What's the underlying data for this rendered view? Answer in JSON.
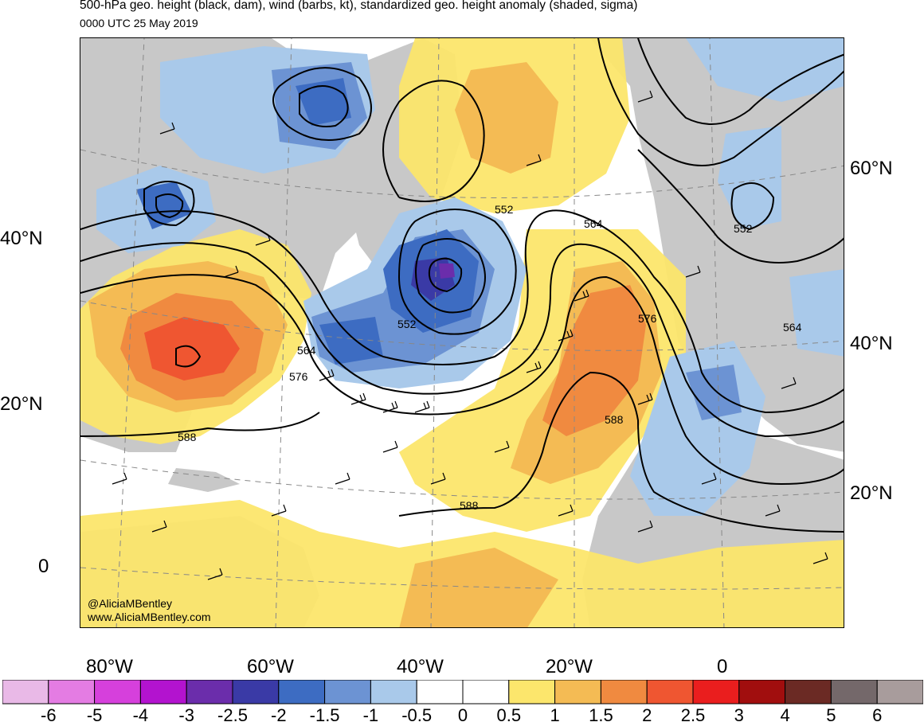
{
  "header": {
    "title": "500-hPa geo. height (black, dam), wind (barbs, kt), standardized geo. height anomaly (shaded, sigma)",
    "subtitle": "0000 UTC 25 May 2019"
  },
  "credits": {
    "handle": "@AliciaMBentley",
    "website": "www.AliciaMBentley.com"
  },
  "axes": {
    "left_lat": [
      "40°N",
      "20°N",
      "0"
    ],
    "right_lat": [
      "60°N",
      "40°N",
      "20°N"
    ],
    "bottom_lon": [
      "80°W",
      "60°W",
      "40°W",
      "20°W",
      "0"
    ]
  },
  "contour_labels": [
    "552",
    "564",
    "552",
    "552",
    "564",
    "576",
    "576",
    "564",
    "588",
    "588",
    "588"
  ],
  "colorbar": {
    "ticks": [
      "-6",
      "-5",
      "-4",
      "-3",
      "-2.5",
      "-2",
      "-1.5",
      "-1",
      "-0.5",
      "0",
      "0.5",
      "1",
      "1.5",
      "2",
      "2.5",
      "3",
      "4",
      "5",
      "6"
    ],
    "colors": [
      "#e9b9e7",
      "#e47ce3",
      "#d640dc",
      "#b313cf",
      "#6b2dab",
      "#3a3aa6",
      "#3d6cc2",
      "#6c93d3",
      "#a9c9ea",
      "#ffffff",
      "#ffffff",
      "#fce66c",
      "#f4bb54",
      "#f08a40",
      "#ef5631",
      "#ea1e1e",
      "#a10e0e",
      "#6b2a24",
      "#74686a",
      "#a89c9c"
    ]
  },
  "map_colors": {
    "land": "#c8c8c8",
    "positive_1": "#fce66c",
    "positive_2": "#f4bb54",
    "positive_3": "#f08a40",
    "positive_4": "#ef5631",
    "negative_1": "#a9c9ea",
    "negative_2": "#6c93d3",
    "negative_3": "#3d6cc2",
    "negative_4": "#3a3aa6"
  }
}
